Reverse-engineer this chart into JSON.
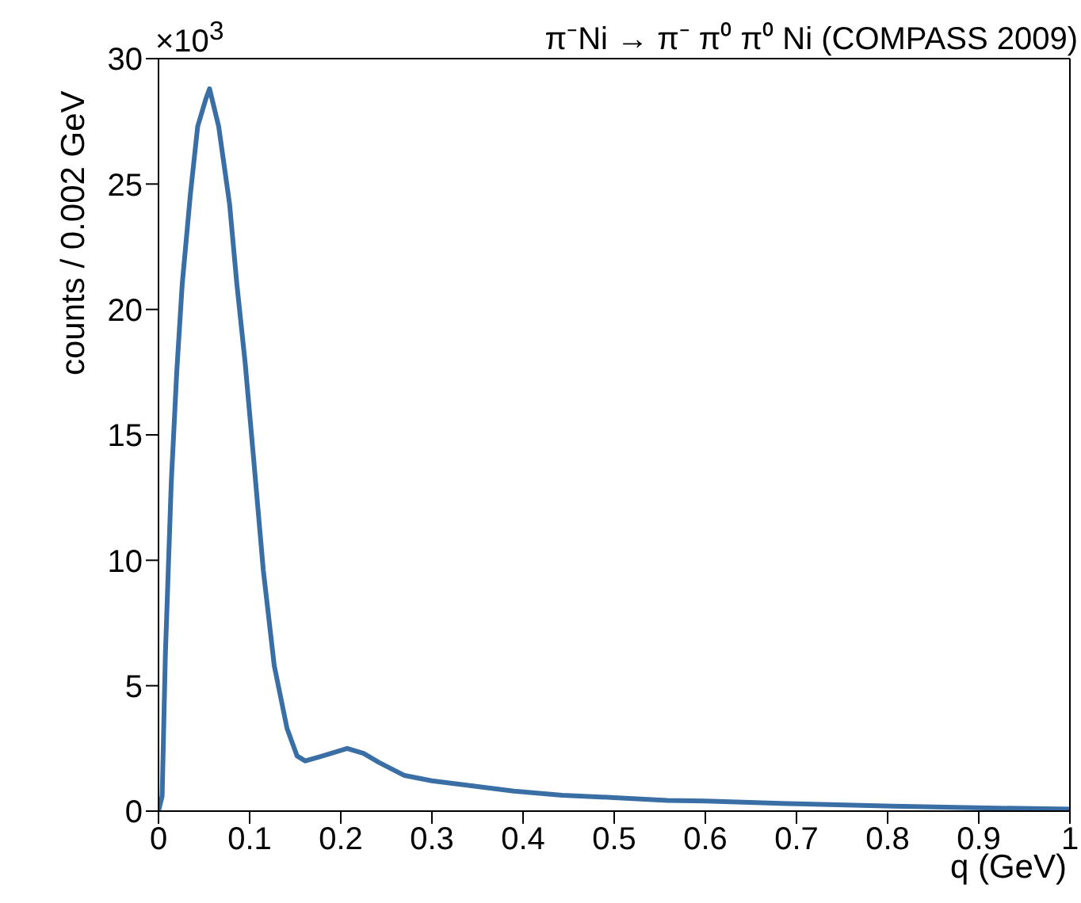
{
  "chart_data": {
    "type": "line",
    "title": "π⁻Ni → π⁻ π⁰ π⁰ Ni (COMPASS 2009)",
    "xlabel": "q (GeV)",
    "ylabel": "counts / 0.002 GeV",
    "annotations": [
      "×10$^{3}$"
    ],
    "x": [
      0,
      0.004,
      0.0075,
      0.014,
      0.02,
      0.026,
      0.035,
      0.043,
      0.052,
      0.056,
      0.066,
      0.078,
      0.086,
      0.095,
      0.104,
      0.115,
      0.127,
      0.141,
      0.152,
      0.161,
      0.18,
      0.207,
      0.225,
      0.242,
      0.27,
      0.3,
      0.345,
      0.39,
      0.443,
      0.5,
      0.558,
      0.6,
      0.69,
      0.806,
      0.92,
      1
    ],
    "series": [
      {
        "color": "#3a6fa5",
        "values": [
          0,
          0.6,
          6.2,
          13.1,
          17.5,
          21,
          24.6,
          27.3,
          28.4,
          28.8,
          27.3,
          24.2,
          21,
          17.9,
          14.2,
          9.6,
          5.8,
          3.3,
          2.2,
          2,
          2.2,
          2.5,
          2.3,
          1.94,
          1.42,
          1.21,
          1,
          0.8,
          0.63,
          0.54,
          0.43,
          0.4,
          0.3,
          0.2,
          0.12,
          0.08
        ]
      }
    ],
    "xlim": [
      0,
      1
    ],
    "xticks": [
      0,
      0.1,
      0.2,
      0.3,
      0.4,
      0.5,
      0.6,
      0.7,
      0.8,
      0.9,
      1
    ],
    "ylim": [
      0,
      30
    ],
    "yticks": [
      0,
      5,
      10,
      15,
      20,
      25,
      30
    ],
    "grid": false,
    "legend": false,
    "marker": "none",
    "line_style": "solid"
  }
}
